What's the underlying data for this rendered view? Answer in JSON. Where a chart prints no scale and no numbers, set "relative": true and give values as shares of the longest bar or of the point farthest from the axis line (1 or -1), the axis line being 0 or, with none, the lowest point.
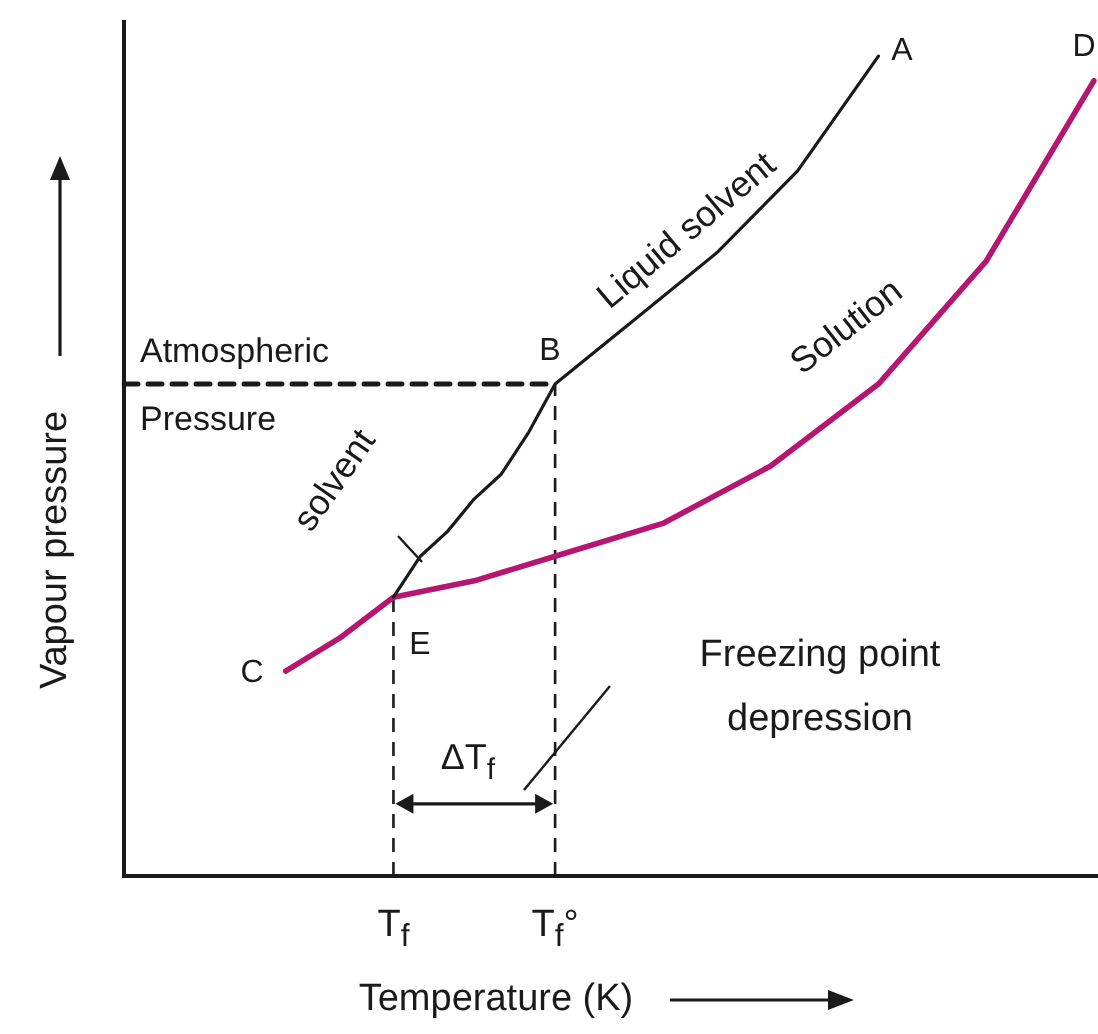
{
  "chart_data": {
    "type": "line",
    "relative": true,
    "xlabel": "Temperature (K)",
    "ylabel": "Vapour pressure",
    "tick_labels": "x",
    "marker": "none",
    "categories": [
      null,
      null,
      null,
      null,
      null,
      null,
      null,
      null,
      null,
      null,
      "T$_{f}$",
      null,
      null,
      null,
      null,
      null,
      "T$_{f}$°",
      null,
      null,
      null,
      null,
      null,
      null,
      null,
      null,
      null,
      null,
      null,
      null,
      null,
      null,
      null,
      null,
      null,
      null,
      null,
      null
    ],
    "series": [
      {
        "color": "#1a1a1a",
        "values": [
          null,
          null,
          null,
          null,
          null,
          null,
          null,
          null,
          null,
          null,
          0.34,
          0.39,
          0.42,
          0.46,
          0.49,
          0.54,
          0.6,
          null,
          null,
          0.68,
          null,
          null,
          0.76,
          null,
          null,
          0.86,
          null,
          null,
          1,
          null,
          null,
          null,
          null,
          null,
          null,
          null,
          null
        ]
      },
      {
        "color": "#b5166f",
        "values": [
          null,
          null,
          null,
          null,
          null,
          null,
          0.25,
          null,
          0.29,
          null,
          0.34,
          null,
          null,
          0.36,
          null,
          null,
          0.39,
          null,
          null,
          null,
          0.43,
          null,
          null,
          null,
          0.5,
          null,
          null,
          null,
          0.6,
          null,
          null,
          null,
          0.75,
          null,
          null,
          null,
          0.97
        ]
      },
      {
        "color": "#1a1a1a",
        "line_style": "dashed",
        "values": [
          0.6,
          null,
          null,
          null,
          null,
          null,
          null,
          null,
          null,
          null,
          null,
          null,
          null,
          null,
          null,
          null,
          0.6,
          null,
          null,
          null,
          null,
          null,
          null,
          null,
          null,
          null,
          null,
          null,
          null,
          null,
          null,
          null,
          null,
          null,
          null,
          null,
          null
        ]
      }
    ],
    "ref_lines": [
      {
        "axis": "x",
        "value": "T$_{f}$",
        "line_style": "dashed"
      },
      {
        "axis": "x",
        "value": "T$_{f}$°",
        "line_style": "dashed"
      }
    ],
    "annotations": [
      "A",
      "B",
      "C",
      "D",
      "E",
      "Liquid solvent",
      "Solution",
      "solvent",
      "Atmospheric Pressure",
      "Freezing point depression",
      "ΔT$_{f}$"
    ]
  }
}
